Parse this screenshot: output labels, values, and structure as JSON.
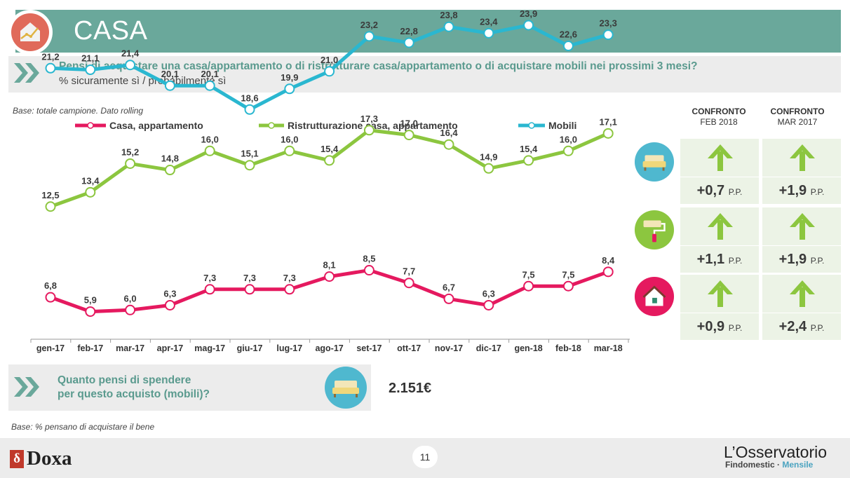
{
  "header": {
    "title": "CASA"
  },
  "question": {
    "text": "Pensi di acquistare una casa/appartamento o di ristrutturare casa/appartamento o di acquistare mobili nei prossimi 3 mesi?",
    "subtitle": "% sicuramente sì / probabilmente sì"
  },
  "base_note": "Base: totale campione. Dato rolling",
  "chart_data": {
    "type": "line",
    "categories": [
      "gen-17",
      "feb-17",
      "mar-17",
      "apr-17",
      "mag-17",
      "giu-17",
      "lug-17",
      "ago-17",
      "set-17",
      "ott-17",
      "nov-17",
      "dic-17",
      "gen-18",
      "feb-18",
      "mar-18"
    ],
    "series": [
      {
        "name": "Casa, appartamento",
        "color": "#e5195f",
        "values": [
          6.8,
          5.9,
          6.0,
          6.3,
          7.3,
          7.3,
          7.3,
          8.1,
          8.5,
          7.7,
          6.7,
          6.3,
          7.5,
          7.5,
          8.4
        ],
        "labels": [
          "6,8",
          "5,9",
          "6,0",
          "6,3",
          "7,3",
          "7,3",
          "7,3",
          "8,1",
          "8,5",
          "7,7",
          "6,7",
          "6,3",
          "7,5",
          "7,5",
          "8,4"
        ]
      },
      {
        "name": "Ristrutturazione casa, appartamento",
        "color": "#8cc63f",
        "values": [
          12.5,
          13.4,
          15.2,
          14.8,
          16.0,
          15.1,
          16.0,
          15.4,
          17.3,
          17.0,
          16.4,
          14.9,
          15.4,
          16.0,
          17.1
        ],
        "labels": [
          "12,5",
          "13,4",
          "15,2",
          "14,8",
          "16,0",
          "15,1",
          "16,0",
          "15,4",
          "17,3",
          "17,0",
          "16,4",
          "14,9",
          "15,4",
          "16,0",
          "17,1"
        ]
      },
      {
        "name": "Mobili",
        "color": "#2ab7d0",
        "values": [
          21.2,
          21.1,
          21.4,
          20.1,
          20.1,
          18.6,
          19.9,
          21.0,
          23.2,
          22.8,
          23.8,
          23.4,
          23.9,
          22.6,
          23.3
        ],
        "labels": [
          "21,2",
          "21,1",
          "21,4",
          "20,1",
          "20,1",
          "18,6",
          "19,9",
          "21,0",
          "23,2",
          "22,8",
          "23,8",
          "23,4",
          "23,9",
          "22,6",
          "23,3"
        ]
      }
    ]
  },
  "comparison": {
    "headers": [
      {
        "title": "CONFRONTO",
        "sub": "FEB 2018"
      },
      {
        "title": "CONFRONTO",
        "sub": "MAR 2017"
      }
    ],
    "rows": [
      {
        "icon": "sofa-icon",
        "icon_color": "#4fb8cf",
        "arrow_color": "#8cc63f",
        "values": [
          "+0,7",
          "+1,9"
        ],
        "unit": "P.P."
      },
      {
        "icon": "paint-roller-icon",
        "icon_color": "#8cc63f",
        "arrow_color": "#8cc63f",
        "values": [
          "+1,1",
          "+1,9"
        ],
        "unit": "P.P."
      },
      {
        "icon": "house-icon",
        "icon_color": "#e5195f",
        "arrow_color": "#8cc63f",
        "values": [
          "+0,9",
          "+2,4"
        ],
        "unit": "P.P."
      }
    ]
  },
  "spend": {
    "question_line1": "Quanto pensi di spendere",
    "question_line2": "per questo acquisto (mobili)?",
    "amount": "2.151€"
  },
  "base_note2": "Base: % pensano di acquistare il bene",
  "footer": {
    "page_number": "11",
    "doxa": "Doxa",
    "brand_name": "L’Osservatorio",
    "brand_sub_a": "Findomestic · ",
    "brand_sub_b": "Mensile"
  }
}
